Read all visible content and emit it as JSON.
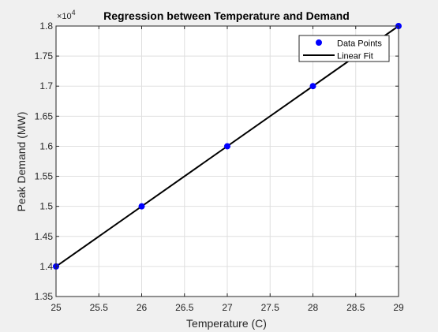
{
  "chart_data": {
    "type": "scatter",
    "title": "Regression between Temperature and Demand",
    "xlabel": "Temperature (C)",
    "ylabel": "Peak Demand (MW)",
    "y_exponent_label": "×10",
    "y_exponent_power": "4",
    "xlim": [
      25,
      29
    ],
    "ylim": [
      1.35,
      1.8
    ],
    "x_ticks": [
      25,
      25.5,
      26,
      26.5,
      27,
      27.5,
      28,
      28.5,
      29
    ],
    "x_tick_labels": [
      "25",
      "25.5",
      "26",
      "26.5",
      "27",
      "27.5",
      "28",
      "28.5",
      "29"
    ],
    "y_ticks": [
      1.35,
      1.4,
      1.45,
      1.5,
      1.55,
      1.6,
      1.65,
      1.7,
      1.75,
      1.8
    ],
    "y_tick_labels": [
      "1.35",
      "1.4",
      "1.45",
      "1.5",
      "1.55",
      "1.6",
      "1.65",
      "1.7",
      "1.75",
      "1.8"
    ],
    "grid": true,
    "legend_position": "top-right",
    "series": [
      {
        "name": "Data Points",
        "kind": "markers",
        "color": "#0000ff",
        "x": [
          25,
          26,
          27,
          28,
          29
        ],
        "y": [
          1.4,
          1.5,
          1.6,
          1.7,
          1.8
        ]
      },
      {
        "name": "Linear Fit",
        "kind": "line",
        "color": "#000000",
        "x": [
          25,
          29
        ],
        "y": [
          1.4,
          1.8
        ]
      }
    ]
  }
}
